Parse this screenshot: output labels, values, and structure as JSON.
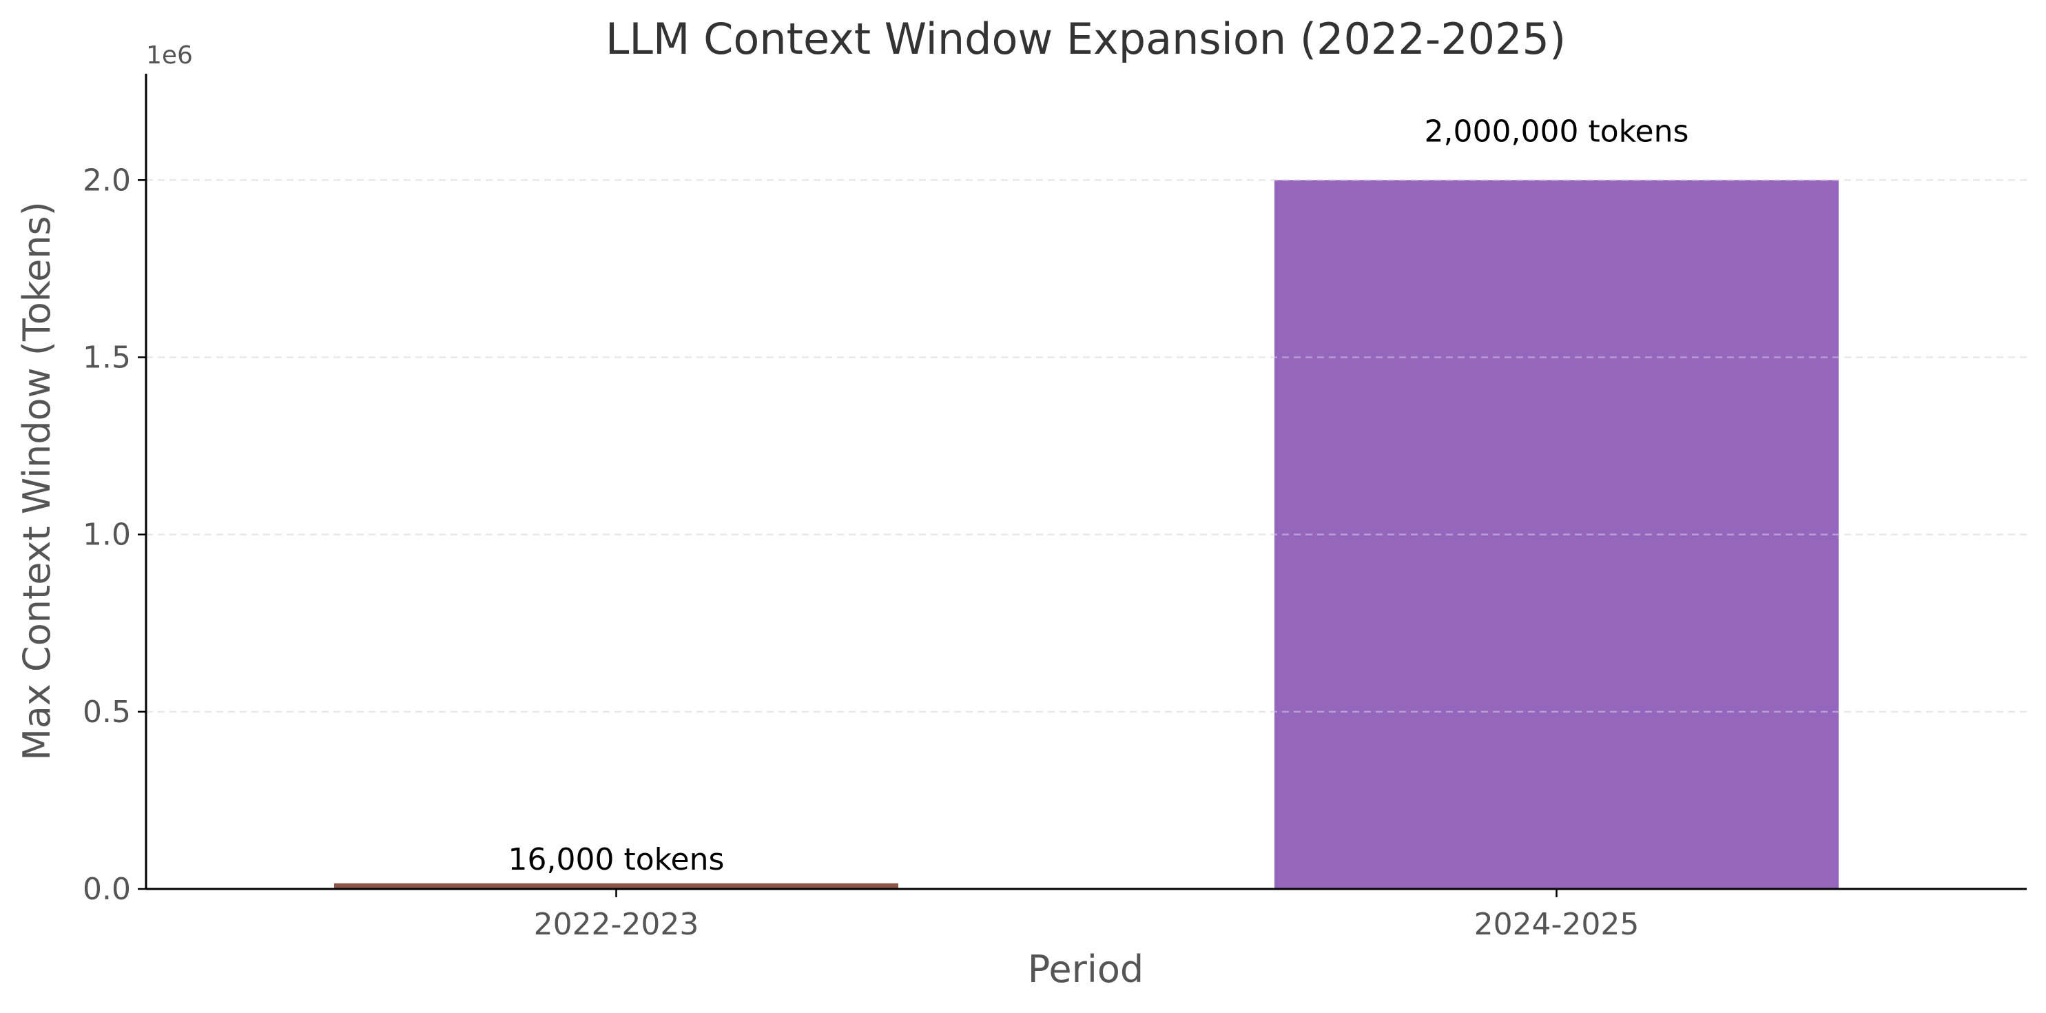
{
  "chart_data": {
    "type": "bar",
    "title": "LLM Context Window Expansion (2022-2025)",
    "xlabel": "Period",
    "ylabel": "Max Context Window (Tokens)",
    "categories": [
      "2022-2023",
      "2024-2025"
    ],
    "values": [
      16000,
      2000000
    ],
    "data_labels": [
      "16,000 tokens",
      "2,000,000 tokens"
    ],
    "bar_colors": [
      "#8c564b",
      "#9467bd"
    ],
    "ylim": [
      0,
      2300000
    ],
    "y_ticks": [
      0,
      500000,
      1000000,
      1500000,
      2000000
    ],
    "y_tick_labels": [
      "0.0",
      "0.5",
      "1.0",
      "1.5",
      "2.0"
    ],
    "y_offset_label": "1e6",
    "grid": {
      "axis": "y",
      "style": "dashed",
      "color": "#dddddd"
    },
    "spines": {
      "top": false,
      "right": false
    }
  }
}
